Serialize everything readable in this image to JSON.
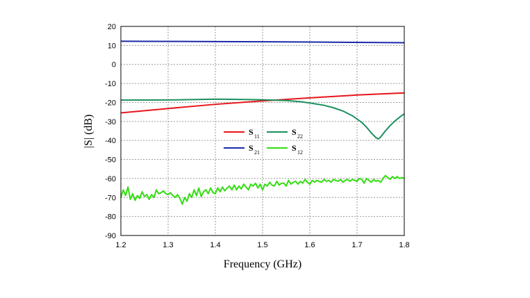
{
  "chart_data": {
    "type": "line",
    "xlabel": "Frequency (GHz)",
    "ylabel": "|S| (dB)",
    "xlim": [
      1.2,
      1.8
    ],
    "ylim": [
      -90,
      20
    ],
    "x_ticks": [
      "1.2",
      "1.3",
      "1.4",
      "1.5",
      "1.6",
      "1.7",
      "1.8"
    ],
    "y_ticks": [
      "20",
      "10",
      "0",
      "-10",
      "-20",
      "-30",
      "-40",
      "-50",
      "-60",
      "-70",
      "-80",
      "-90"
    ],
    "grid": true,
    "legend_position": "center",
    "series": [
      {
        "name": "S11",
        "label_main": "S",
        "label_sub": "11",
        "color": "#e8151b",
        "x": [
          1.2,
          1.3,
          1.4,
          1.5,
          1.6,
          1.7,
          1.8
        ],
        "y": [
          -25.5,
          -23.2,
          -21,
          -19.2,
          -17.6,
          -16.1,
          -15
        ]
      },
      {
        "name": "S22",
        "label_main": "S",
        "label_sub": "22",
        "color": "#1d8f5e",
        "x": [
          1.2,
          1.3,
          1.35,
          1.4,
          1.45,
          1.5,
          1.55,
          1.58,
          1.6,
          1.63,
          1.65,
          1.67,
          1.69,
          1.71,
          1.72,
          1.73,
          1.74,
          1.745,
          1.75,
          1.76,
          1.77,
          1.78,
          1.79,
          1.8
        ],
        "y": [
          -18.8,
          -18.7,
          -18.5,
          -18.3,
          -18.4,
          -18.6,
          -19,
          -19.6,
          -20.3,
          -21.5,
          -22.8,
          -24.5,
          -27,
          -30.5,
          -33,
          -36,
          -38.5,
          -39.2,
          -38.2,
          -35,
          -32.2,
          -29.8,
          -27.8,
          -26
        ]
      },
      {
        "name": "S21",
        "label_main": "S",
        "label_sub": "21",
        "color": "#1a2aa8",
        "x": [
          1.2,
          1.3,
          1.4,
          1.5,
          1.6,
          1.7,
          1.8
        ],
        "y": [
          12.2,
          12.1,
          12,
          11.9,
          11.8,
          11.6,
          11.4
        ]
      },
      {
        "name": "S12",
        "label_main": "S",
        "label_sub": "12",
        "color": "#33dd11",
        "x": [
          1.2,
          1.205,
          1.21,
          1.215,
          1.22,
          1.225,
          1.23,
          1.235,
          1.24,
          1.245,
          1.25,
          1.255,
          1.26,
          1.265,
          1.27,
          1.275,
          1.28,
          1.285,
          1.29,
          1.295,
          1.3,
          1.305,
          1.31,
          1.315,
          1.32,
          1.325,
          1.33,
          1.335,
          1.34,
          1.345,
          1.35,
          1.355,
          1.36,
          1.365,
          1.37,
          1.375,
          1.38,
          1.385,
          1.39,
          1.395,
          1.4,
          1.405,
          1.41,
          1.415,
          1.42,
          1.425,
          1.43,
          1.435,
          1.44,
          1.445,
          1.45,
          1.455,
          1.46,
          1.465,
          1.47,
          1.475,
          1.48,
          1.485,
          1.49,
          1.495,
          1.5,
          1.505,
          1.51,
          1.515,
          1.52,
          1.525,
          1.53,
          1.535,
          1.54,
          1.545,
          1.55,
          1.555,
          1.56,
          1.565,
          1.57,
          1.575,
          1.58,
          1.585,
          1.59,
          1.595,
          1.6,
          1.605,
          1.61,
          1.615,
          1.62,
          1.625,
          1.63,
          1.635,
          1.64,
          1.645,
          1.65,
          1.655,
          1.66,
          1.665,
          1.67,
          1.675,
          1.68,
          1.685,
          1.69,
          1.695,
          1.7,
          1.705,
          1.71,
          1.715,
          1.72,
          1.725,
          1.73,
          1.735,
          1.74,
          1.745,
          1.75,
          1.755,
          1.76,
          1.765,
          1.77,
          1.775,
          1.78,
          1.785,
          1.79,
          1.795,
          1.8
        ],
        "y": [
          -70,
          -66,
          -69,
          -64.5,
          -71,
          -68,
          -71.5,
          -69,
          -70.5,
          -67,
          -69.5,
          -68.5,
          -71,
          -68.5,
          -70,
          -66,
          -68,
          -67.5,
          -66.5,
          -68,
          -68.5,
          -67.5,
          -69,
          -70,
          -68.5,
          -70.5,
          -73.5,
          -70,
          -72,
          -68,
          -70,
          -66,
          -69,
          -65,
          -69.5,
          -67,
          -66,
          -68,
          -65,
          -67.5,
          -68,
          -65,
          -67,
          -64.5,
          -66.5,
          -65,
          -64,
          -66,
          -63.5,
          -66,
          -64,
          -65.5,
          -63,
          -64.5,
          -66,
          -63,
          -64,
          -62.5,
          -65,
          -63,
          -66,
          -63,
          -64,
          -62,
          -63.5,
          -64,
          -61.5,
          -63.5,
          -62.5,
          -62.5,
          -64,
          -61,
          -63,
          -62,
          -61.5,
          -63,
          -61.5,
          -62.5,
          -60.5,
          -62,
          -63,
          -61,
          -62,
          -61,
          -61.5,
          -62,
          -60.5,
          -61.5,
          -61,
          -62,
          -60.5,
          -61,
          -61.5,
          -60.5,
          -62,
          -61,
          -60.5,
          -61.5,
          -60.5,
          -61,
          -61.5,
          -60,
          -60.5,
          -62.5,
          -60,
          -61,
          -62,
          -60.5,
          -61.5,
          -61,
          -62,
          -60,
          -58.5,
          -59.5,
          -60.5,
          -59,
          -60,
          -59,
          -60,
          -59.5,
          -60
        ]
      }
    ]
  }
}
